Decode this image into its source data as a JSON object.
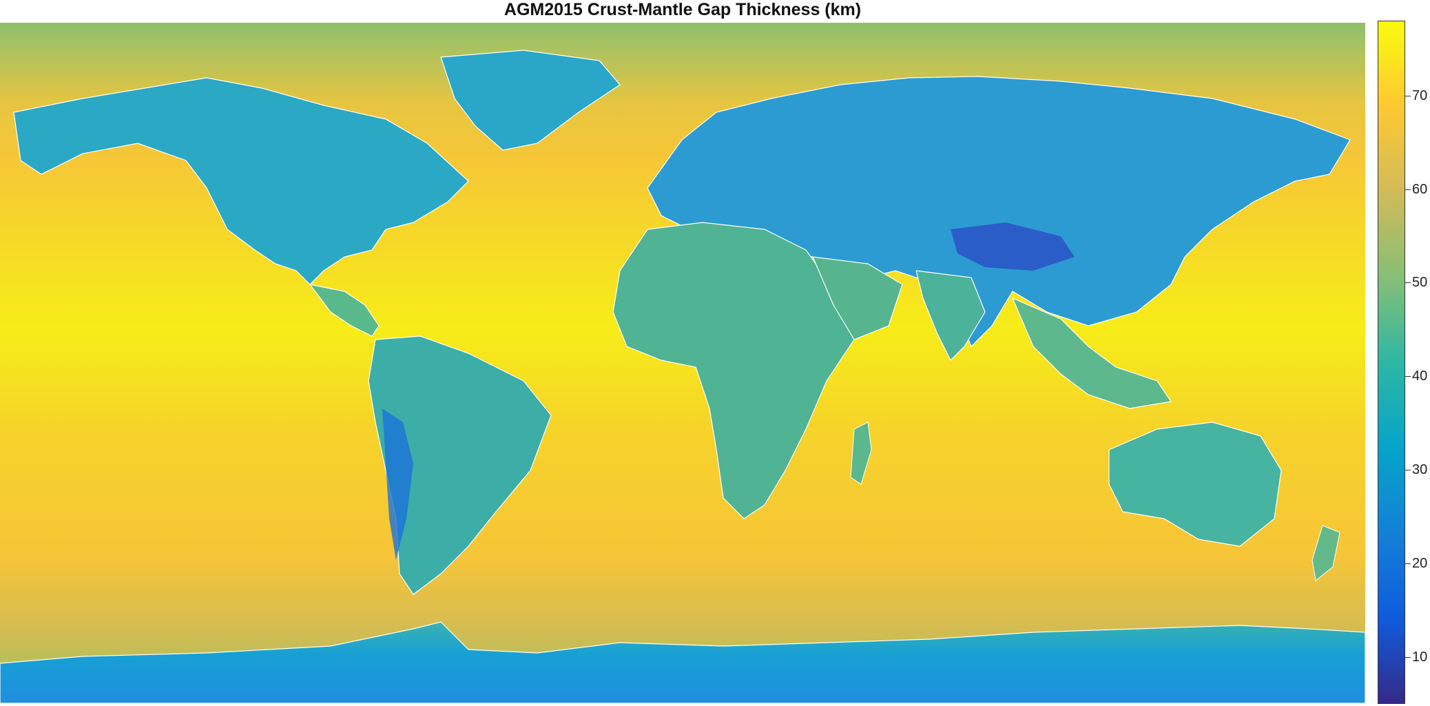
{
  "title": "AGM2015 Crust-Mantle Gap Thickness (km)",
  "colorbar": {
    "min": 5,
    "max": 78,
    "ticks": [
      "10",
      "20",
      "30",
      "40",
      "50",
      "60",
      "70"
    ],
    "tick_values": [
      10,
      20,
      30,
      40,
      50,
      60,
      70
    ],
    "colormap": "parula",
    "stops": [
      "#352a87",
      "#0f5cdd",
      "#1481d6",
      "#06a4ca",
      "#2eb7a4",
      "#87bf77",
      "#d1bb59",
      "#fec832",
      "#f9fb0e"
    ]
  },
  "map": {
    "projection": "equirectangular",
    "coastline_color": "#ffffff",
    "ocean_color": "#f4d92a",
    "land_color": "#3eb59a",
    "polar_color": "#1a9fd8"
  }
}
